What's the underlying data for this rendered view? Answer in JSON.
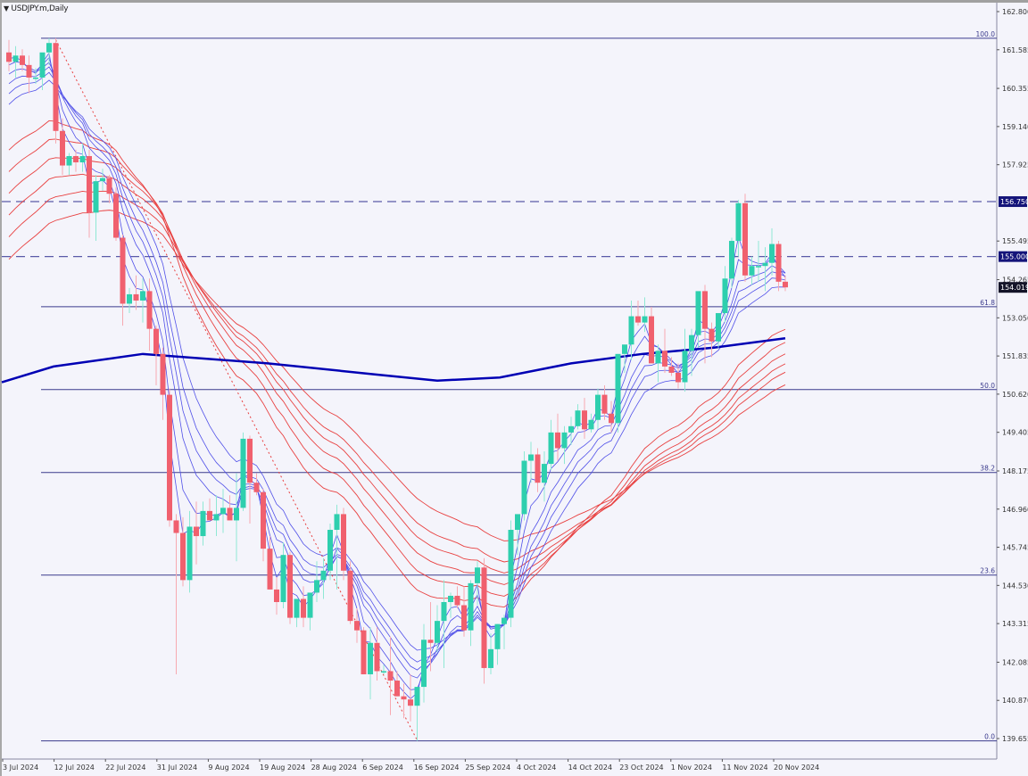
{
  "window": {
    "title": "USDJPY.m,Daily",
    "menu_icon": "triangle-down-icon"
  },
  "colors": {
    "background": "#f4f4fb",
    "bull": "#2ecfae",
    "bear": "#f0606e",
    "ma_fast": "#5050e8",
    "ma_slow": "#e84040",
    "ma_200": "#0000b4",
    "fib": "#3a3a8c",
    "label_bg": "#14147a"
  },
  "chart_data": {
    "type": "candlestick",
    "title": "USDJPY.m,Daily",
    "symbol": "USDJPY.m",
    "timeframe": "Daily",
    "price_axis": {
      "ticks": [
        "162.800",
        "161.585",
        "160.355",
        "159.140",
        "157.925",
        "156.750",
        "155.495",
        "155.000",
        "154.265",
        "154.019",
        "153.050",
        "151.835",
        "150.620",
        "149.405",
        "148.175",
        "146.960",
        "145.745",
        "144.530",
        "143.315",
        "142.085",
        "140.870",
        "139.655"
      ],
      "range": [
        139.655,
        162.8
      ]
    },
    "time_axis": {
      "ticks": [
        "3 Jul 2024",
        "12 Jul 2024",
        "22 Jul 2024",
        "31 Jul 2024",
        "9 Aug 2024",
        "19 Aug 2024",
        "28 Aug 2024",
        "6 Sep 2024",
        "16 Sep 2024",
        "25 Sep 2024",
        "4 Oct 2024",
        "14 Oct 2024",
        "23 Oct 2024",
        "1 Nov 2024",
        "11 Nov 2024",
        "20 Nov 2024"
      ]
    },
    "horizontal_lines": [
      {
        "label": "156.750",
        "price": 156.75,
        "style": "dashed"
      },
      {
        "label": "155.000",
        "price": 155.0,
        "style": "dashed"
      }
    ],
    "current_price": {
      "label": "154.019",
      "price": 154.019
    },
    "fibonacci": {
      "high": 161.95,
      "low": 139.58,
      "levels": [
        {
          "label": "100.0",
          "value": 100.0
        },
        {
          "label": "61.8",
          "value": 61.8
        },
        {
          "label": "50.0",
          "value": 50.0
        },
        {
          "label": "38.2",
          "value": 38.2
        },
        {
          "label": "23.6",
          "value": 23.6
        },
        {
          "label": "0.0",
          "value": 0.0
        }
      ]
    },
    "indicators": [
      "Short-term MA ribbon (blue)",
      "Long-term MA ribbon (red)",
      "200 MA (thick dark blue)",
      "Trendline (dotted red)"
    ],
    "candles": [
      {
        "o": 161.5,
        "h": 161.9,
        "l": 160.9,
        "c": 161.2
      },
      {
        "o": 161.2,
        "h": 161.7,
        "l": 160.7,
        "c": 161.4
      },
      {
        "o": 161.4,
        "h": 161.6,
        "l": 160.9,
        "c": 161.1
      },
      {
        "o": 161.1,
        "h": 161.4,
        "l": 160.2,
        "c": 160.7
      },
      {
        "o": 160.7,
        "h": 161.0,
        "l": 160.5,
        "c": 160.7
      },
      {
        "o": 160.7,
        "h": 161.1,
        "l": 160.3,
        "c": 161.5
      },
      {
        "o": 161.5,
        "h": 161.95,
        "l": 161.1,
        "c": 161.8
      },
      {
        "o": 161.8,
        "h": 161.95,
        "l": 158.6,
        "c": 159.0
      },
      {
        "o": 159.0,
        "h": 159.4,
        "l": 157.6,
        "c": 157.9
      },
      {
        "o": 157.9,
        "h": 158.3,
        "l": 157.6,
        "c": 158.2
      },
      {
        "o": 158.2,
        "h": 158.4,
        "l": 157.7,
        "c": 158.0
      },
      {
        "o": 158.0,
        "h": 158.6,
        "l": 157.7,
        "c": 158.2
      },
      {
        "o": 158.2,
        "h": 158.4,
        "l": 155.6,
        "c": 156.4
      },
      {
        "o": 156.4,
        "h": 157.6,
        "l": 155.5,
        "c": 157.4
      },
      {
        "o": 157.4,
        "h": 157.8,
        "l": 157.1,
        "c": 157.5
      },
      {
        "o": 157.5,
        "h": 157.6,
        "l": 156.7,
        "c": 157.0
      },
      {
        "o": 157.0,
        "h": 157.2,
        "l": 155.5,
        "c": 155.6
      },
      {
        "o": 155.6,
        "h": 155.7,
        "l": 152.8,
        "c": 153.5
      },
      {
        "o": 153.5,
        "h": 154.0,
        "l": 153.2,
        "c": 153.8
      },
      {
        "o": 153.8,
        "h": 154.4,
        "l": 153.3,
        "c": 153.6
      },
      {
        "o": 153.6,
        "h": 154.3,
        "l": 152.9,
        "c": 153.9
      },
      {
        "o": 153.9,
        "h": 154.3,
        "l": 152.0,
        "c": 152.7
      },
      {
        "o": 152.7,
        "h": 152.8,
        "l": 150.9,
        "c": 151.9
      },
      {
        "o": 151.9,
        "h": 152.1,
        "l": 149.8,
        "c": 150.6
      },
      {
        "o": 150.6,
        "h": 150.8,
        "l": 146.4,
        "c": 146.6
      },
      {
        "o": 146.6,
        "h": 146.8,
        "l": 141.7,
        "c": 146.2
      },
      {
        "o": 146.2,
        "h": 146.7,
        "l": 144.5,
        "c": 144.7
      },
      {
        "o": 144.7,
        "h": 146.9,
        "l": 144.3,
        "c": 146.4
      },
      {
        "o": 146.4,
        "h": 147.2,
        "l": 145.2,
        "c": 146.1
      },
      {
        "o": 146.1,
        "h": 147.2,
        "l": 145.8,
        "c": 146.9
      },
      {
        "o": 146.9,
        "h": 147.3,
        "l": 146.6,
        "c": 146.6
      },
      {
        "o": 146.6,
        "h": 147.4,
        "l": 146.1,
        "c": 146.8
      },
      {
        "o": 146.8,
        "h": 147.6,
        "l": 146.2,
        "c": 147.0
      },
      {
        "o": 147.0,
        "h": 147.4,
        "l": 146.6,
        "c": 146.6
      },
      {
        "o": 146.6,
        "h": 148.1,
        "l": 145.3,
        "c": 147.0
      },
      {
        "o": 147.0,
        "h": 149.4,
        "l": 146.9,
        "c": 149.2
      },
      {
        "o": 149.2,
        "h": 149.3,
        "l": 146.5,
        "c": 147.8
      },
      {
        "o": 147.8,
        "h": 148.1,
        "l": 147.4,
        "c": 147.5
      },
      {
        "o": 147.5,
        "h": 147.6,
        "l": 145.3,
        "c": 145.7
      },
      {
        "o": 145.7,
        "h": 146.1,
        "l": 144.4,
        "c": 144.4
      },
      {
        "o": 144.4,
        "h": 144.8,
        "l": 143.6,
        "c": 144.0
      },
      {
        "o": 144.0,
        "h": 145.9,
        "l": 143.8,
        "c": 145.5
      },
      {
        "o": 145.5,
        "h": 145.6,
        "l": 143.3,
        "c": 143.5
      },
      {
        "o": 143.5,
        "h": 144.1,
        "l": 143.2,
        "c": 144.1
      },
      {
        "o": 144.1,
        "h": 144.5,
        "l": 143.2,
        "c": 143.5
      },
      {
        "o": 143.5,
        "h": 144.2,
        "l": 143.1,
        "c": 144.3
      },
      {
        "o": 144.3,
        "h": 145.3,
        "l": 144.0,
        "c": 144.7
      },
      {
        "o": 144.7,
        "h": 145.4,
        "l": 144.1,
        "c": 145.0
      },
      {
        "o": 145.0,
        "h": 146.5,
        "l": 144.7,
        "c": 146.3
      },
      {
        "o": 146.3,
        "h": 147.1,
        "l": 144.4,
        "c": 146.8
      },
      {
        "o": 146.8,
        "h": 147.0,
        "l": 144.7,
        "c": 145.0
      },
      {
        "o": 145.0,
        "h": 145.3,
        "l": 143.3,
        "c": 143.4
      },
      {
        "o": 143.4,
        "h": 143.8,
        "l": 142.7,
        "c": 143.1
      },
      {
        "o": 143.1,
        "h": 143.2,
        "l": 141.7,
        "c": 141.7
      },
      {
        "o": 141.7,
        "h": 143.2,
        "l": 140.9,
        "c": 142.7
      },
      {
        "o": 142.7,
        "h": 143.2,
        "l": 141.5,
        "c": 141.8
      },
      {
        "o": 141.8,
        "h": 142.0,
        "l": 141.7,
        "c": 141.8
      },
      {
        "o": 141.8,
        "h": 142.9,
        "l": 140.4,
        "c": 141.5
      },
      {
        "o": 141.5,
        "h": 141.8,
        "l": 141.0,
        "c": 141.0
      },
      {
        "o": 141.0,
        "h": 141.4,
        "l": 140.3,
        "c": 140.9
      },
      {
        "o": 140.9,
        "h": 141.7,
        "l": 140.2,
        "c": 140.7
      },
      {
        "o": 140.7,
        "h": 141.0,
        "l": 139.58,
        "c": 141.3
      },
      {
        "o": 141.3,
        "h": 143.3,
        "l": 140.8,
        "c": 142.8
      },
      {
        "o": 142.8,
        "h": 144.0,
        "l": 141.8,
        "c": 142.7
      },
      {
        "o": 142.7,
        "h": 143.9,
        "l": 142.4,
        "c": 143.4
      },
      {
        "o": 143.4,
        "h": 144.7,
        "l": 141.9,
        "c": 144.0
      },
      {
        "o": 144.0,
        "h": 144.3,
        "l": 143.5,
        "c": 144.2
      },
      {
        "o": 144.2,
        "h": 144.5,
        "l": 143.8,
        "c": 143.9
      },
      {
        "o": 143.9,
        "h": 144.5,
        "l": 142.9,
        "c": 143.1
      },
      {
        "o": 143.1,
        "h": 144.7,
        "l": 142.6,
        "c": 144.6
      },
      {
        "o": 144.6,
        "h": 145.3,
        "l": 143.9,
        "c": 145.1
      },
      {
        "o": 145.1,
        "h": 145.4,
        "l": 141.4,
        "c": 141.9
      },
      {
        "o": 141.9,
        "h": 143.0,
        "l": 141.7,
        "c": 142.5
      },
      {
        "o": 142.5,
        "h": 143.3,
        "l": 142.0,
        "c": 143.3
      },
      {
        "o": 143.3,
        "h": 143.6,
        "l": 142.5,
        "c": 143.5
      },
      {
        "o": 143.5,
        "h": 146.6,
        "l": 143.2,
        "c": 146.3
      },
      {
        "o": 146.3,
        "h": 146.7,
        "l": 145.5,
        "c": 146.8
      },
      {
        "o": 146.8,
        "h": 148.8,
        "l": 146.6,
        "c": 148.5
      },
      {
        "o": 148.5,
        "h": 149.1,
        "l": 147.8,
        "c": 148.7
      },
      {
        "o": 148.7,
        "h": 148.9,
        "l": 147.5,
        "c": 147.8
      },
      {
        "o": 147.8,
        "h": 148.8,
        "l": 147.2,
        "c": 148.4
      },
      {
        "o": 148.4,
        "h": 149.8,
        "l": 148.2,
        "c": 149.4
      },
      {
        "o": 149.4,
        "h": 150.0,
        "l": 148.5,
        "c": 148.9
      },
      {
        "o": 148.9,
        "h": 149.6,
        "l": 148.4,
        "c": 149.4
      },
      {
        "o": 149.4,
        "h": 149.9,
        "l": 149.0,
        "c": 149.6
      },
      {
        "o": 149.6,
        "h": 150.3,
        "l": 149.5,
        "c": 150.1
      },
      {
        "o": 150.1,
        "h": 150.5,
        "l": 149.2,
        "c": 149.5
      },
      {
        "o": 149.5,
        "h": 150.0,
        "l": 149.4,
        "c": 149.8
      },
      {
        "o": 149.8,
        "h": 150.8,
        "l": 149.5,
        "c": 150.6
      },
      {
        "o": 150.6,
        "h": 150.9,
        "l": 149.8,
        "c": 150.0
      },
      {
        "o": 150.0,
        "h": 150.4,
        "l": 149.4,
        "c": 149.7
      },
      {
        "o": 149.7,
        "h": 151.9,
        "l": 149.4,
        "c": 151.9
      },
      {
        "o": 151.9,
        "h": 152.1,
        "l": 151.3,
        "c": 152.2
      },
      {
        "o": 152.2,
        "h": 153.6,
        "l": 151.7,
        "c": 153.1
      },
      {
        "o": 153.1,
        "h": 153.6,
        "l": 152.8,
        "c": 152.9
      },
      {
        "o": 152.9,
        "h": 153.7,
        "l": 152.6,
        "c": 153.1
      },
      {
        "o": 153.1,
        "h": 153.4,
        "l": 151.6,
        "c": 151.6
      },
      {
        "o": 151.6,
        "h": 152.2,
        "l": 151.0,
        "c": 152.0
      },
      {
        "o": 152.0,
        "h": 152.7,
        "l": 151.3,
        "c": 151.5
      },
      {
        "o": 151.5,
        "h": 151.8,
        "l": 151.2,
        "c": 151.3
      },
      {
        "o": 151.3,
        "h": 151.6,
        "l": 150.8,
        "c": 151.0
      },
      {
        "o": 151.0,
        "h": 152.7,
        "l": 150.7,
        "c": 152.0
      },
      {
        "o": 152.0,
        "h": 152.7,
        "l": 151.2,
        "c": 152.5
      },
      {
        "o": 152.5,
        "h": 153.7,
        "l": 152.1,
        "c": 153.9
      },
      {
        "o": 153.9,
        "h": 154.1,
        "l": 151.6,
        "c": 152.7
      },
      {
        "o": 152.7,
        "h": 152.9,
        "l": 151.8,
        "c": 152.3
      },
      {
        "o": 152.3,
        "h": 153.1,
        "l": 152.1,
        "c": 153.2
      },
      {
        "o": 153.2,
        "h": 154.7,
        "l": 152.9,
        "c": 154.3
      },
      {
        "o": 154.3,
        "h": 155.6,
        "l": 154.0,
        "c": 155.5
      },
      {
        "o": 155.5,
        "h": 156.8,
        "l": 155.0,
        "c": 156.7
      },
      {
        "o": 156.7,
        "h": 157.0,
        "l": 154.2,
        "c": 154.4
      },
      {
        "o": 154.4,
        "h": 155.0,
        "l": 154.1,
        "c": 154.7
      },
      {
        "o": 154.7,
        "h": 155.5,
        "l": 154.2,
        "c": 154.7
      },
      {
        "o": 154.7,
        "h": 155.3,
        "l": 153.9,
        "c": 154.8
      },
      {
        "o": 154.8,
        "h": 155.9,
        "l": 154.4,
        "c": 155.4
      },
      {
        "o": 155.4,
        "h": 155.5,
        "l": 153.9,
        "c": 154.2
      },
      {
        "o": 154.2,
        "h": 154.4,
        "l": 153.9,
        "c": 154.02
      }
    ]
  }
}
